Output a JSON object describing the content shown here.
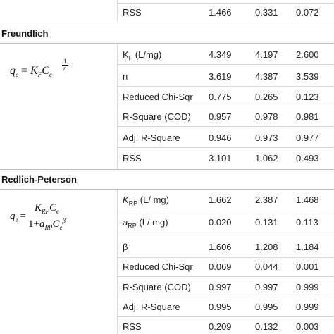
{
  "top": {
    "rows": [
      {
        "param": "RSS",
        "v": [
          "1.466",
          "0.331",
          "0.072"
        ]
      }
    ]
  },
  "freundlich": {
    "title": "Freundlich",
    "equation": {
      "lhs": "q",
      "lhs_sub": "e",
      "eq": "=",
      "k": "K",
      "k_sub": "F",
      "c": "C",
      "c_sub": "e",
      "exp_num": "1",
      "exp_den": "n"
    },
    "rows": [
      {
        "param": "K",
        "param_sub": "F",
        "param_suffix": " (L/mg)",
        "v": [
          "4.349",
          "4.197",
          "2.600"
        ]
      },
      {
        "param": "n",
        "v": [
          "3.619",
          "4.387",
          "3.539"
        ]
      },
      {
        "param": "Reduced Chi-Sqr",
        "v": [
          "0.775",
          "0.265",
          "0.123"
        ]
      },
      {
        "param": "R-Square (COD)",
        "v": [
          "0.957",
          "0.978",
          "0.981"
        ]
      },
      {
        "param": "Adj. R-Square",
        "v": [
          "0.946",
          "0.973",
          "0.977"
        ]
      },
      {
        "param": "RSS",
        "v": [
          "3.101",
          "1.062",
          "0.493"
        ]
      }
    ]
  },
  "redlich": {
    "title": "Redlich-Peterson",
    "equation": {
      "lhs": "q",
      "lhs_sub": "e",
      "eq": "=",
      "num_k": "K",
      "num_k_sub": "RP",
      "num_c": "C",
      "num_c_sub": "e",
      "den_one": "1",
      "den_plus": "+",
      "den_a": "a",
      "den_a_sub": "RP",
      "den_c": "C",
      "den_c_sub": "e",
      "den_exp": "β"
    },
    "rows": [
      {
        "param": "K",
        "param_sub": "RP",
        "param_suffix": " (L/ mg)",
        "v": [
          "1.662",
          "2.387",
          "1.468"
        ]
      },
      {
        "param": "a",
        "param_sub": "RP",
        "param_suffix": " (L/ mg)",
        "v": [
          "0.020",
          "0.131",
          "0.113"
        ]
      },
      {
        "param": "β",
        "v": [
          "1.606",
          "1.208",
          "1.184"
        ]
      },
      {
        "param": "Reduced Chi-Sqr",
        "v": [
          "0.069",
          "0.044",
          "0.001"
        ]
      },
      {
        "param": "R-Square (COD)",
        "v": [
          "0.997",
          "0.997",
          "0.999"
        ]
      },
      {
        "param": "Adj. R-Square",
        "v": [
          "0.995",
          "0.995",
          "0.999"
        ]
      },
      {
        "param": "RSS",
        "v": [
          "0.209",
          "0.132",
          "0.003"
        ]
      }
    ]
  }
}
